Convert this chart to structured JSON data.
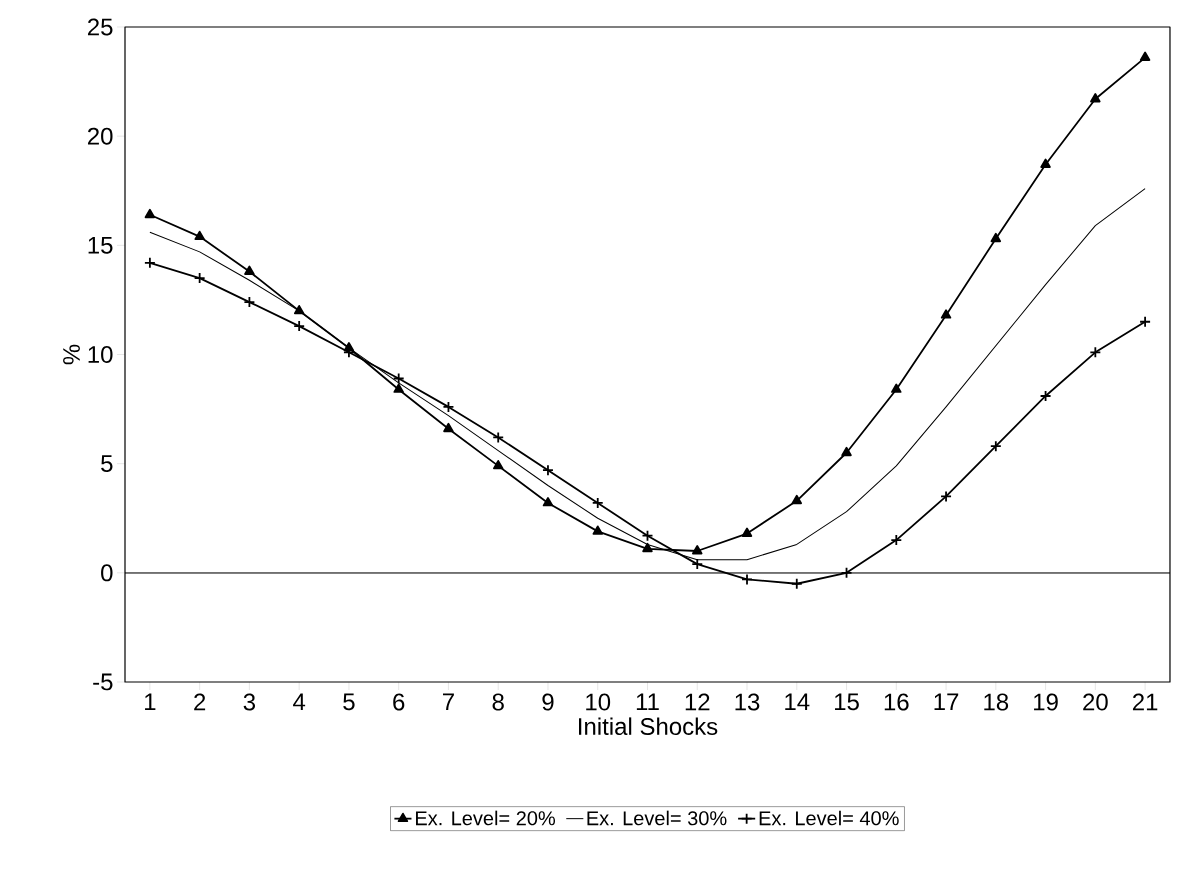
{
  "chart_data": {
    "type": "line",
    "xlabel": "Initial Shocks",
    "ylabel": "%",
    "categories": [
      "1",
      "2",
      "3",
      "4",
      "5",
      "6",
      "7",
      "8",
      "9",
      "10",
      "11",
      "12",
      "13",
      "14",
      "15",
      "16",
      "17",
      "18",
      "19",
      "20",
      "21"
    ],
    "series": [
      {
        "name": "Ex. Level= 20%",
        "color": "#000000",
        "marker": "triangle",
        "values": [
          16.4,
          15.4,
          13.8,
          12.0,
          10.3,
          8.4,
          6.6,
          4.9,
          3.2,
          1.9,
          1.1,
          1.0,
          1.8,
          3.3,
          5.5,
          8.4,
          11.8,
          15.3,
          18.7,
          21.7,
          23.6
        ]
      },
      {
        "name": "Ex. Level= 30%",
        "color": "#000000",
        "marker": "none",
        "values": [
          15.6,
          14.7,
          13.4,
          12.0,
          10.3,
          8.7,
          7.2,
          5.6,
          4.0,
          2.5,
          1.3,
          0.6,
          0.6,
          1.3,
          2.8,
          4.9,
          7.6,
          10.4,
          13.2,
          15.9,
          17.6
        ]
      },
      {
        "name": "Ex. Level= 40%",
        "color": "#000000",
        "marker": "cross",
        "values": [
          14.2,
          13.5,
          12.4,
          11.3,
          10.1,
          8.9,
          7.6,
          6.2,
          4.7,
          3.2,
          1.7,
          0.4,
          -0.3,
          -0.5,
          0.0,
          1.5,
          3.5,
          5.8,
          8.1,
          10.1,
          11.5
        ]
      }
    ],
    "ylim": [
      -5,
      25
    ],
    "yticks": [
      -5,
      0,
      5,
      10,
      15,
      20,
      25
    ],
    "ref_lines": [
      {
        "axis": "y",
        "value": 0
      }
    ],
    "legend": "bottom",
    "grid": false
  }
}
